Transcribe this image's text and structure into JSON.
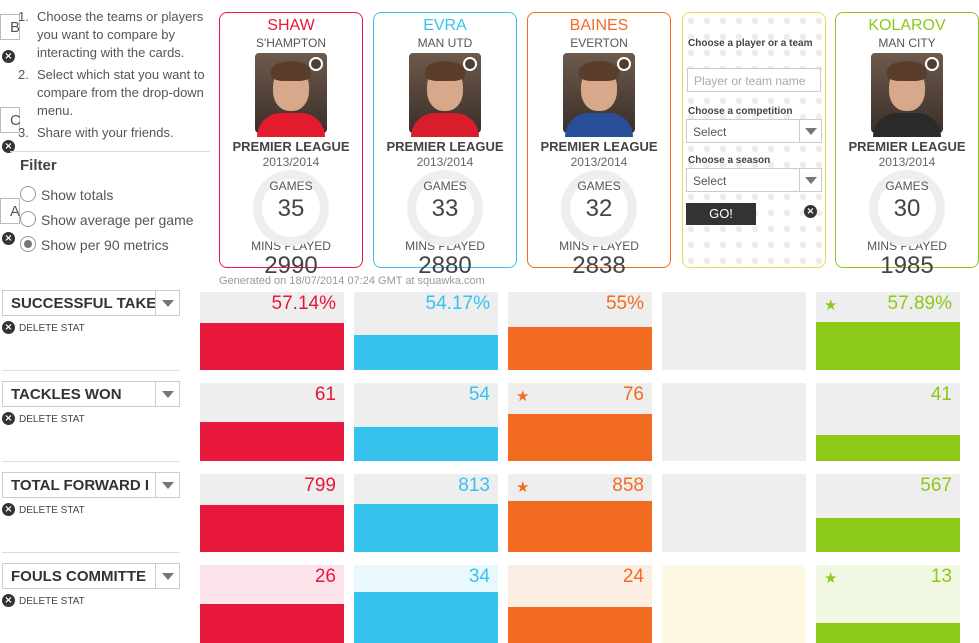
{
  "instructions": {
    "left_button_initials": [
      "B",
      "C",
      "A"
    ],
    "steps": [
      "Choose the teams or players you want to compare by interacting with the cards.",
      "Select which stat you want to compare from the drop-down menu.",
      "Share with your friends."
    ],
    "filter_title": "Filter",
    "filter_options": [
      {
        "label": "Show totals",
        "selected": false
      },
      {
        "label": "Show average per game",
        "selected": false
      },
      {
        "label": "Show per 90 metrics",
        "selected": true
      }
    ]
  },
  "players": [
    {
      "name": "SHAW",
      "team": "S'HAMPTON",
      "competition": "PREMIER LEAGUE",
      "season": "2013/2014",
      "games_label": "GAMES",
      "games": "35",
      "mins_label": "MINS PLAYED",
      "mins": "2990",
      "color": "#e8173c",
      "shirt_color": "#e41b2c"
    },
    {
      "name": "EVRA",
      "team": "MAN UTD",
      "competition": "PREMIER LEAGUE",
      "season": "2013/2014",
      "games_label": "GAMES",
      "games": "33",
      "mins_label": "MINS PLAYED",
      "mins": "2880",
      "color": "#35c3ee",
      "shirt_color": "#d81e2a"
    },
    {
      "name": "BAINES",
      "team": "EVERTON",
      "competition": "PREMIER LEAGUE",
      "season": "2013/2014",
      "games_label": "GAMES",
      "games": "32",
      "mins_label": "MINS PLAYED",
      "mins": "2838",
      "color": "#f26b21",
      "shirt_color": "#2a4f9a"
    },
    {
      "name": "KOLAROV",
      "team": "MAN CITY",
      "competition": "PREMIER LEAGUE",
      "season": "2013/2014",
      "games_label": "GAMES",
      "games": "30",
      "mins_label": "MINS PLAYED",
      "mins": "1985",
      "color": "#8cc919",
      "shirt_color": "#2a2a2a"
    }
  ],
  "selector": {
    "player_label": "Choose a player or a team",
    "player_placeholder": "Player or team name",
    "competition_label": "Choose a competition",
    "competition_value": "Select",
    "season_label": "Choose a season",
    "season_value": "Select",
    "go_label": "GO!",
    "border_color": "#e8d84c"
  },
  "generated_text": "Generated on 18/07/2014 07:24 GMT at squawka.com",
  "stats": [
    {
      "label": "SUCCESSFUL TAKE",
      "delete_label": "DELETE STAT",
      "values": [
        "57.14%",
        "54.17%",
        "55%",
        "57.89%"
      ],
      "fill_fractions": [
        0.6,
        0.45,
        0.55,
        0.62
      ],
      "star": [
        false,
        false,
        false,
        true
      ],
      "light_bg": false
    },
    {
      "label": "TACKLES WON",
      "delete_label": "DELETE STAT",
      "values": [
        "61",
        "54",
        "76",
        "41"
      ],
      "fill_fractions": [
        0.5,
        0.43,
        0.6,
        0.33
      ],
      "star": [
        false,
        false,
        true,
        false
      ],
      "light_bg": false
    },
    {
      "label": "TOTAL FORWARD I",
      "delete_label": "DELETE STAT",
      "values": [
        "799",
        "813",
        "858",
        "567"
      ],
      "fill_fractions": [
        0.6,
        0.62,
        0.66,
        0.43
      ],
      "star": [
        false,
        false,
        true,
        false
      ],
      "light_bg": false
    },
    {
      "label": "FOULS COMMITTE",
      "delete_label": "DELETE STAT",
      "values": [
        "26",
        "34",
        "24",
        "13"
      ],
      "fill_fractions": [
        0.5,
        0.65,
        0.46,
        0.25
      ],
      "star": [
        false,
        false,
        false,
        true
      ],
      "light_bg": true
    }
  ],
  "light_backgrounds": [
    "#fde4ea",
    "#e9f8fd",
    "#fdeee4",
    "#fdf9e4",
    "#f0f8e3"
  ]
}
